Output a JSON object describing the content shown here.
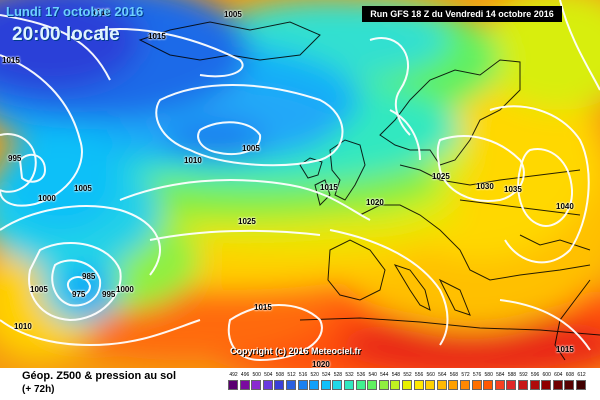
{
  "header": {
    "date_line": "Lundi 17 octobre 2016",
    "time_line": "20:00 locale",
    "run_line": "Run GFS 18 Z du Vendredi 14 octobre 2016"
  },
  "copyright": "Copyright (c) 2016 Meteociel.fr",
  "footer": {
    "title": "Géop. Z500 & pression au sol",
    "subtitle": "(+ 72h)"
  },
  "isobar_labels": [
    {
      "text": "1015"
    },
    {
      "text": "1015"
    },
    {
      "text": "1015"
    },
    {
      "text": "995"
    },
    {
      "text": "1000"
    },
    {
      "text": "1005"
    },
    {
      "text": "1010"
    },
    {
      "text": "1005"
    },
    {
      "text": "1015"
    },
    {
      "text": "1020"
    },
    {
      "text": "1025"
    },
    {
      "text": "1025"
    },
    {
      "text": "1030"
    },
    {
      "text": "1035"
    },
    {
      "text": "1040"
    },
    {
      "text": "985"
    },
    {
      "text": "975"
    },
    {
      "text": "995"
    },
    {
      "text": "1000"
    },
    {
      "text": "1005"
    },
    {
      "text": "1010"
    },
    {
      "text": "1015"
    },
    {
      "text": "1020"
    },
    {
      "text": "1015"
    },
    {
      "text": "1005"
    }
  ],
  "scale": {
    "labels": [
      "492",
      "496",
      "500",
      "504",
      "508",
      "512",
      "516",
      "520",
      "524",
      "528",
      "532",
      "536",
      "540",
      "544",
      "548",
      "552",
      "556",
      "560",
      "564",
      "568",
      "572",
      "576",
      "580",
      "584",
      "588",
      "592",
      "596",
      "600",
      "604",
      "608",
      "612"
    ],
    "colors": [
      "#5a0070",
      "#7a0aa0",
      "#8a2ad0",
      "#6a3ae0",
      "#3a40d8",
      "#2a60e0",
      "#1a80f0",
      "#10a0f8",
      "#10c0f8",
      "#20d8e8",
      "#30e8c0",
      "#40f090",
      "#60f060",
      "#90f040",
      "#c0f020",
      "#e8f000",
      "#ffe800",
      "#ffd000",
      "#ffb800",
      "#ffa000",
      "#ff8800",
      "#ff7000",
      "#ff5800",
      "#f84020",
      "#e02828",
      "#c81818",
      "#b00a0a",
      "#900000",
      "#700000",
      "#580000",
      "#400000"
    ]
  },
  "colors": {
    "header_text": "#6fd0ff",
    "isobar": "#ffffff"
  }
}
